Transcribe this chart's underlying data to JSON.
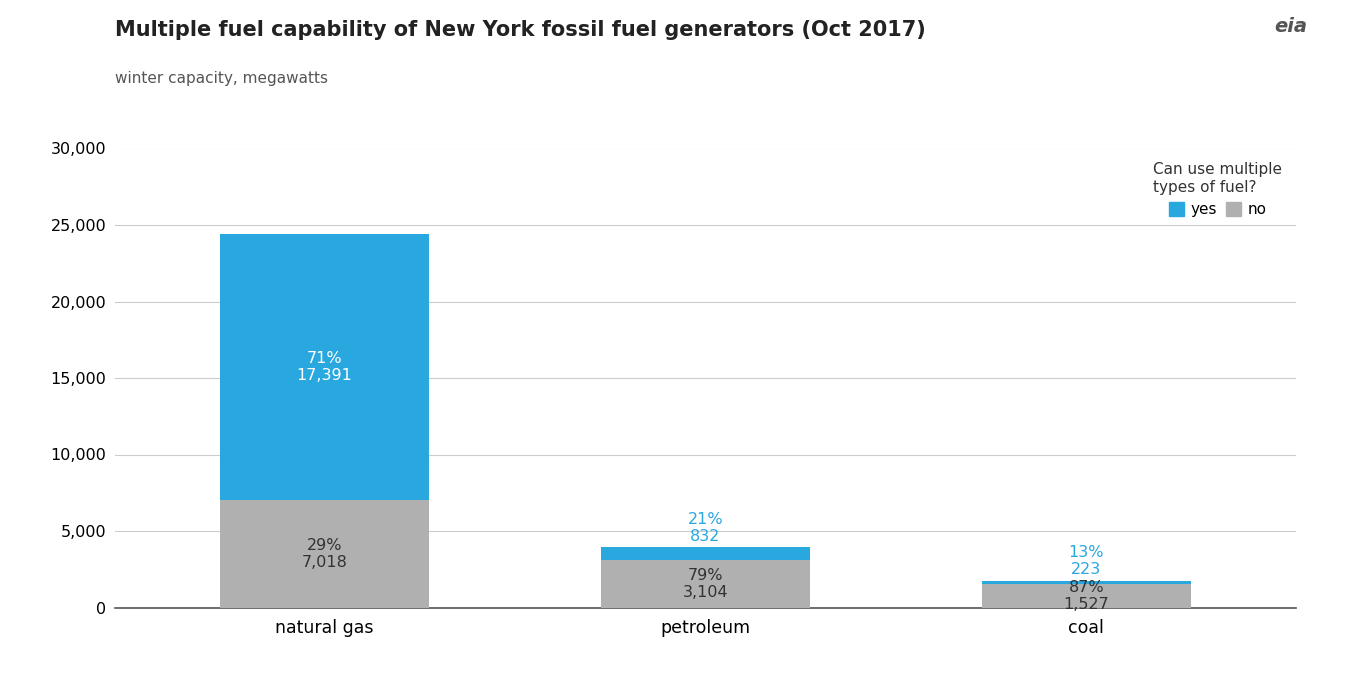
{
  "title": "Multiple fuel capability of New York fossil fuel generators (Oct 2017)",
  "subtitle": "winter capacity, megawatts",
  "categories": [
    "natural gas",
    "petroleum",
    "coal"
  ],
  "no_values": [
    7018,
    3104,
    1527
  ],
  "yes_values": [
    17391,
    832,
    223
  ],
  "no_pct": [
    "29%",
    "79%",
    "87%"
  ],
  "yes_pct": [
    "71%",
    "21%",
    "13%"
  ],
  "no_labels": [
    "7,018",
    "3,104",
    "1,527"
  ],
  "yes_labels": [
    "17,391",
    "832",
    "223"
  ],
  "color_yes": "#29a8e0",
  "color_no": "#b0b0b0",
  "ylim": [
    0,
    30000
  ],
  "yticks": [
    0,
    5000,
    10000,
    15000,
    20000,
    25000,
    30000
  ],
  "legend_title": "Can use multiple\ntypes of fuel?",
  "legend_yes": "yes",
  "legend_no": "no",
  "background_color": "#ffffff",
  "grid_color": "#cccccc",
  "title_fontsize": 15,
  "subtitle_fontsize": 11,
  "bar_width": 0.55,
  "annotation_fontsize": 11.5
}
